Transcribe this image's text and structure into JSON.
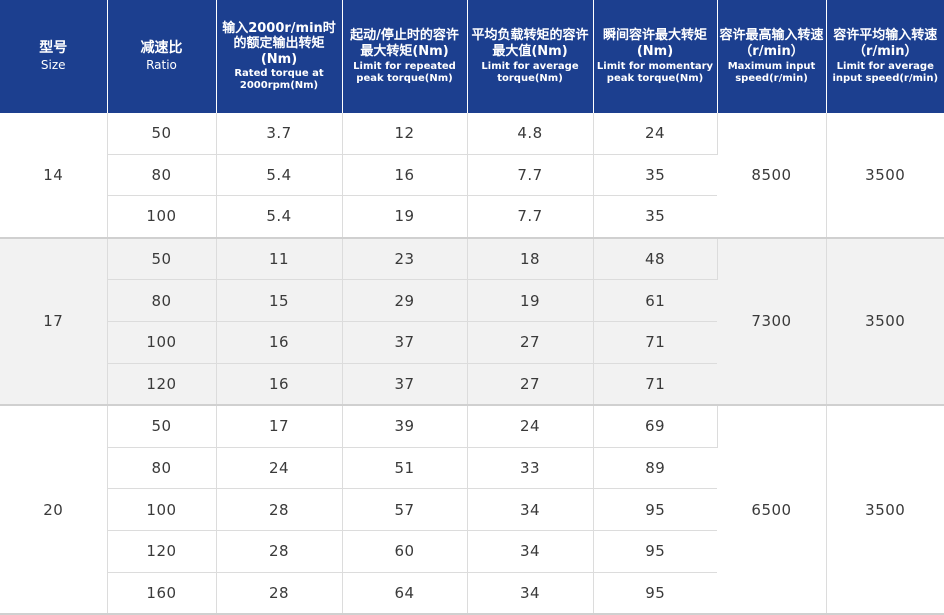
{
  "header": {
    "size_zh": "型号",
    "size_en": "Size",
    "ratio_zh": "减速比",
    "ratio_en": "Ratio",
    "rated_zh": "输入2000r/min时的额定输出转矩(Nm)",
    "rated_en": "Rated torque at 2000rpm(Nm)",
    "repeated_zh": "起动/停止时的容许最大转矩(Nm)",
    "repeated_en": "Limit for repeated peak torque(Nm)",
    "average_zh": "平均负载转矩的容许最大值(Nm)",
    "average_en": "Limit for average torque(Nm)",
    "momentary_zh": "瞬间容许最大转矩(Nm)",
    "momentary_en": "Limit for momentary peak torque(Nm)",
    "max_speed_zh": "容许最高输入转速（r/min）",
    "max_speed_en": "Maximum input speed(r/min)",
    "avg_speed_zh": "容许平均输入转速（r/min）",
    "avg_speed_en": "Limit for average input speed(r/min)"
  },
  "groups": [
    {
      "size": "14",
      "max_speed": "8500",
      "avg_speed": "3500",
      "rows": [
        {
          "ratio": "50",
          "rated": "3.7",
          "repeated": "12",
          "average": "4.8",
          "momentary": "24"
        },
        {
          "ratio": "80",
          "rated": "5.4",
          "repeated": "16",
          "average": "7.7",
          "momentary": "35"
        },
        {
          "ratio": "100",
          "rated": "5.4",
          "repeated": "19",
          "average": "7.7",
          "momentary": "35"
        }
      ]
    },
    {
      "size": "17",
      "max_speed": "7300",
      "avg_speed": "3500",
      "rows": [
        {
          "ratio": "50",
          "rated": "11",
          "repeated": "23",
          "average": "18",
          "momentary": "48"
        },
        {
          "ratio": "80",
          "rated": "15",
          "repeated": "29",
          "average": "19",
          "momentary": "61"
        },
        {
          "ratio": "100",
          "rated": "16",
          "repeated": "37",
          "average": "27",
          "momentary": "71"
        },
        {
          "ratio": "120",
          "rated": "16",
          "repeated": "37",
          "average": "27",
          "momentary": "71"
        }
      ]
    },
    {
      "size": "20",
      "max_speed": "6500",
      "avg_speed": "3500",
      "rows": [
        {
          "ratio": "50",
          "rated": "17",
          "repeated": "39",
          "average": "24",
          "momentary": "69"
        },
        {
          "ratio": "80",
          "rated": "24",
          "repeated": "51",
          "average": "33",
          "momentary": "89"
        },
        {
          "ratio": "100",
          "rated": "28",
          "repeated": "57",
          "average": "34",
          "momentary": "95"
        },
        {
          "ratio": "120",
          "rated": "28",
          "repeated": "60",
          "average": "34",
          "momentary": "95"
        },
        {
          "ratio": "160",
          "rated": "28",
          "repeated": "64",
          "average": "34",
          "momentary": "95"
        }
      ]
    }
  ],
  "colors": {
    "header_bg": "#1c3f8f",
    "header_text": "#ffffff",
    "band_bg": "#f2f2f2",
    "cell_text": "#3a3a3a"
  }
}
